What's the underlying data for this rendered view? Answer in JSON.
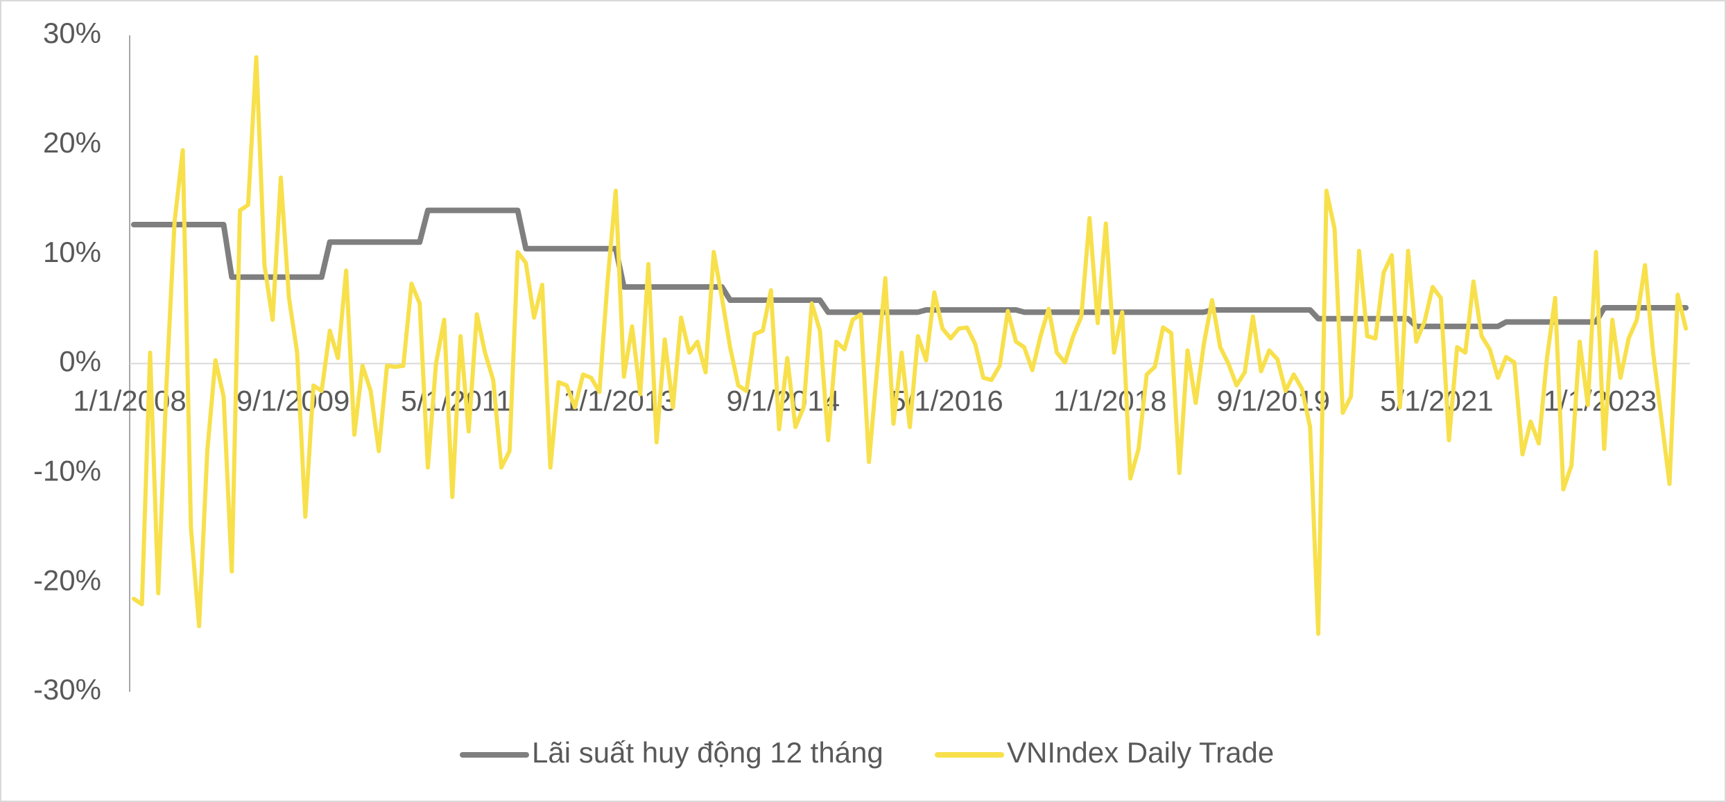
{
  "chart_data": {
    "type": "line",
    "categories": [
      "1/1/2008",
      null,
      null,
      null,
      null,
      null,
      null,
      null,
      null,
      null,
      null,
      null,
      null,
      null,
      null,
      null,
      null,
      null,
      null,
      null,
      "9/1/2009",
      null,
      null,
      null,
      null,
      null,
      null,
      null,
      null,
      null,
      null,
      null,
      null,
      null,
      null,
      null,
      null,
      null,
      null,
      null,
      "5/1/2011",
      null,
      null,
      null,
      null,
      null,
      null,
      null,
      null,
      null,
      null,
      null,
      null,
      null,
      null,
      null,
      null,
      null,
      null,
      null,
      "1/1/2013",
      null,
      null,
      null,
      null,
      null,
      null,
      null,
      null,
      null,
      null,
      null,
      null,
      null,
      null,
      null,
      null,
      null,
      null,
      null,
      "9/1/2014",
      null,
      null,
      null,
      null,
      null,
      null,
      null,
      null,
      null,
      null,
      null,
      null,
      null,
      null,
      null,
      null,
      null,
      null,
      null,
      "5/1/2016",
      null,
      null,
      null,
      null,
      null,
      null,
      null,
      null,
      null,
      null,
      null,
      null,
      null,
      null,
      null,
      null,
      null,
      null,
      null,
      "1/1/2018",
      null,
      null,
      null,
      null,
      null,
      null,
      null,
      null,
      null,
      null,
      null,
      null,
      null,
      null,
      null,
      null,
      null,
      null,
      null,
      "9/1/2019",
      null,
      null,
      null,
      null,
      null,
      null,
      null,
      null,
      null,
      null,
      null,
      null,
      null,
      null,
      null,
      null,
      null,
      null,
      null,
      "5/1/2021",
      null,
      null,
      null,
      null,
      null,
      null,
      null,
      null,
      null,
      null,
      null,
      null,
      null,
      null,
      null,
      null,
      null,
      null,
      null,
      "1/1/2023",
      null,
      null,
      null,
      null,
      null,
      null,
      null,
      null,
      null,
      null
    ],
    "series": [
      {
        "name": "Lãi suất huy động 12 tháng",
        "color": "#7f7f7f",
        "values": [
          12.7,
          12.7,
          12.7,
          12.7,
          12.7,
          12.7,
          12.7,
          12.7,
          12.7,
          12.7,
          12.7,
          12.7,
          7.9,
          7.9,
          7.9,
          7.9,
          7.9,
          7.9,
          7.9,
          7.9,
          7.9,
          7.9,
          7.9,
          7.9,
          11.1,
          11.1,
          11.1,
          11.1,
          11.1,
          11.1,
          11.1,
          11.1,
          11.1,
          11.1,
          11.1,
          11.1,
          14.0,
          14.0,
          14.0,
          14.0,
          14.0,
          14.0,
          14.0,
          14.0,
          14.0,
          14.0,
          14.0,
          14.0,
          10.5,
          10.5,
          10.5,
          10.5,
          10.5,
          10.5,
          10.5,
          10.5,
          10.5,
          10.5,
          10.5,
          10.5,
          7.0,
          7.0,
          7.0,
          7.0,
          7.0,
          7.0,
          7.0,
          7.0,
          7.0,
          7.0,
          7.0,
          7.0,
          7.0,
          5.8,
          5.8,
          5.8,
          5.8,
          5.8,
          5.8,
          5.8,
          5.8,
          5.8,
          5.8,
          5.8,
          5.8,
          4.7,
          4.7,
          4.7,
          4.7,
          4.7,
          4.7,
          4.7,
          4.7,
          4.7,
          4.7,
          4.7,
          4.7,
          4.9,
          4.9,
          4.9,
          4.9,
          4.9,
          4.9,
          4.9,
          4.9,
          4.9,
          4.9,
          4.9,
          4.9,
          4.7,
          4.7,
          4.7,
          4.7,
          4.7,
          4.7,
          4.7,
          4.7,
          4.7,
          4.7,
          4.7,
          4.7,
          4.7,
          4.7,
          4.7,
          4.7,
          4.7,
          4.7,
          4.7,
          4.7,
          4.7,
          4.7,
          4.7,
          4.9,
          4.9,
          4.9,
          4.9,
          4.9,
          4.9,
          4.9,
          4.9,
          4.9,
          4.9,
          4.9,
          4.9,
          4.9,
          4.1,
          4.1,
          4.1,
          4.1,
          4.1,
          4.1,
          4.1,
          4.1,
          4.1,
          4.1,
          4.1,
          4.1,
          3.4,
          3.4,
          3.4,
          3.4,
          3.4,
          3.4,
          3.4,
          3.4,
          3.4,
          3.4,
          3.4,
          3.8,
          3.8,
          3.8,
          3.8,
          3.8,
          3.8,
          3.8,
          3.8,
          3.8,
          3.8,
          3.8,
          3.8,
          5.1,
          5.1,
          5.1,
          5.1,
          5.1,
          5.1,
          5.1,
          5.1,
          5.1,
          5.1,
          5.1
        ]
      },
      {
        "name": "VNIndex Daily Trade",
        "color": "#f7e04b",
        "values": [
          -21.5,
          -22,
          1,
          -21,
          -2,
          13,
          19.5,
          -15,
          -24,
          -8,
          0.3,
          -3,
          -19,
          14,
          14.5,
          28,
          9,
          4,
          17,
          6,
          1,
          -14,
          -2,
          -2.5,
          3,
          0.5,
          8.5,
          -6.5,
          -0.2,
          -2.5,
          -8,
          -0.2,
          -0.3,
          -0.2,
          7.3,
          5.5,
          -9.5,
          0,
          4,
          -12.2,
          2.5,
          -6.2,
          4.5,
          1,
          -1.5,
          -9.5,
          -8,
          10.2,
          9.2,
          4.2,
          7.2,
          -9.5,
          -1.7,
          -2,
          -4,
          -1,
          -1.3,
          -2.6,
          7.5,
          15.8,
          -1.2,
          3.4,
          -2.8,
          9.1,
          -7.2,
          2.2,
          -4,
          4.2,
          1,
          2,
          -0.8,
          10.2,
          6,
          1.5,
          -2,
          -2.5,
          2.7,
          3,
          6.7,
          -6,
          0.5,
          -5.8,
          -4,
          5.5,
          3,
          -7,
          2,
          1.3,
          4,
          4.5,
          -9,
          -0.5,
          7.8,
          -5.5,
          1,
          -5.8,
          2.5,
          0.3,
          6.5,
          3.2,
          2.3,
          3.2,
          3.3,
          1.8,
          -1.3,
          -1.5,
          -0.2,
          4.8,
          2,
          1.5,
          -0.6,
          2.5,
          5,
          1,
          0.1,
          2.5,
          4.3,
          13.3,
          3.7,
          12.8,
          1,
          4.7,
          -10.5,
          -7.8,
          -1,
          -0.3,
          3.3,
          2.8,
          -10,
          1.2,
          -3.6,
          1.8,
          5.8,
          1.5,
          0,
          -2,
          -0.8,
          4.3,
          -0.7,
          1.2,
          0.4,
          -2.5,
          -1,
          -2.3,
          -5.8,
          -24.7,
          15.8,
          12.3,
          -4.5,
          -3,
          10.3,
          2.5,
          2.3,
          8.3,
          9.9,
          -4,
          10.3,
          2,
          3.8,
          7,
          6,
          -7,
          1.5,
          1,
          7.5,
          2.5,
          1.3,
          -1.3,
          0.6,
          0.1,
          -8.3,
          -5.3,
          -7.3,
          0.5,
          6,
          -11.5,
          -9.3,
          2,
          -3.8,
          10.2,
          -7.8,
          4,
          -1.3,
          2.3,
          4,
          9,
          1,
          -5,
          -11,
          6.3,
          3.2
        ]
      }
    ],
    "ylim": [
      -30,
      30
    ],
    "yticks": [
      {
        "value": 30,
        "label": "30%"
      },
      {
        "value": 20,
        "label": "20%"
      },
      {
        "value": 10,
        "label": "10%"
      },
      {
        "value": 0,
        "label": "0%"
      },
      {
        "value": -10,
        "label": "-10%"
      },
      {
        "value": -20,
        "label": "-20%"
      },
      {
        "value": -30,
        "label": "-30%"
      }
    ],
    "grid": false,
    "legend": "bottom"
  }
}
